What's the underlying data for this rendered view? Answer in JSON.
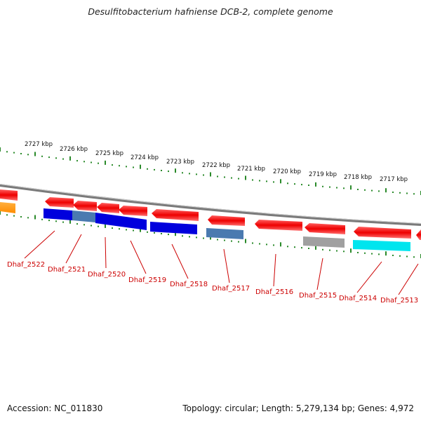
{
  "title": "Desulfitobacterium hafniense DCB-2, complete genome",
  "accession": "Accession: NC_011830",
  "summary": "Topology: circular; Length: 5,279,134 bp; Genes: 4,972",
  "colors": {
    "backbone": "#8a8a8a",
    "ticks": "#2a8a2a",
    "gene_label": "#cc0000",
    "red_gene": "#ee0000",
    "orange_gene": "#ff8c00",
    "blue_gene": "#0000dd",
    "steelblue_gene": "#4a7ab0",
    "gray_gene": "#a0a0a0",
    "cyan_gene": "#00e5ee"
  },
  "scale_labels": [
    "2727 kbp",
    "2726 kbp",
    "2725 kbp",
    "2724 kbp",
    "2723 kbp",
    "2722 kbp",
    "2721 kbp",
    "2720 kbp",
    "2719 kbp",
    "2718 kbp",
    "2717 kbp"
  ],
  "gene_labels": [
    "Dhaf_2522",
    "Dhaf_2521",
    "Dhaf_2520",
    "Dhaf_2519",
    "Dhaf_2518",
    "Dhaf_2517",
    "Dhaf_2516",
    "Dhaf_2515",
    "Dhaf_2514",
    "Dhaf_2513"
  ]
}
